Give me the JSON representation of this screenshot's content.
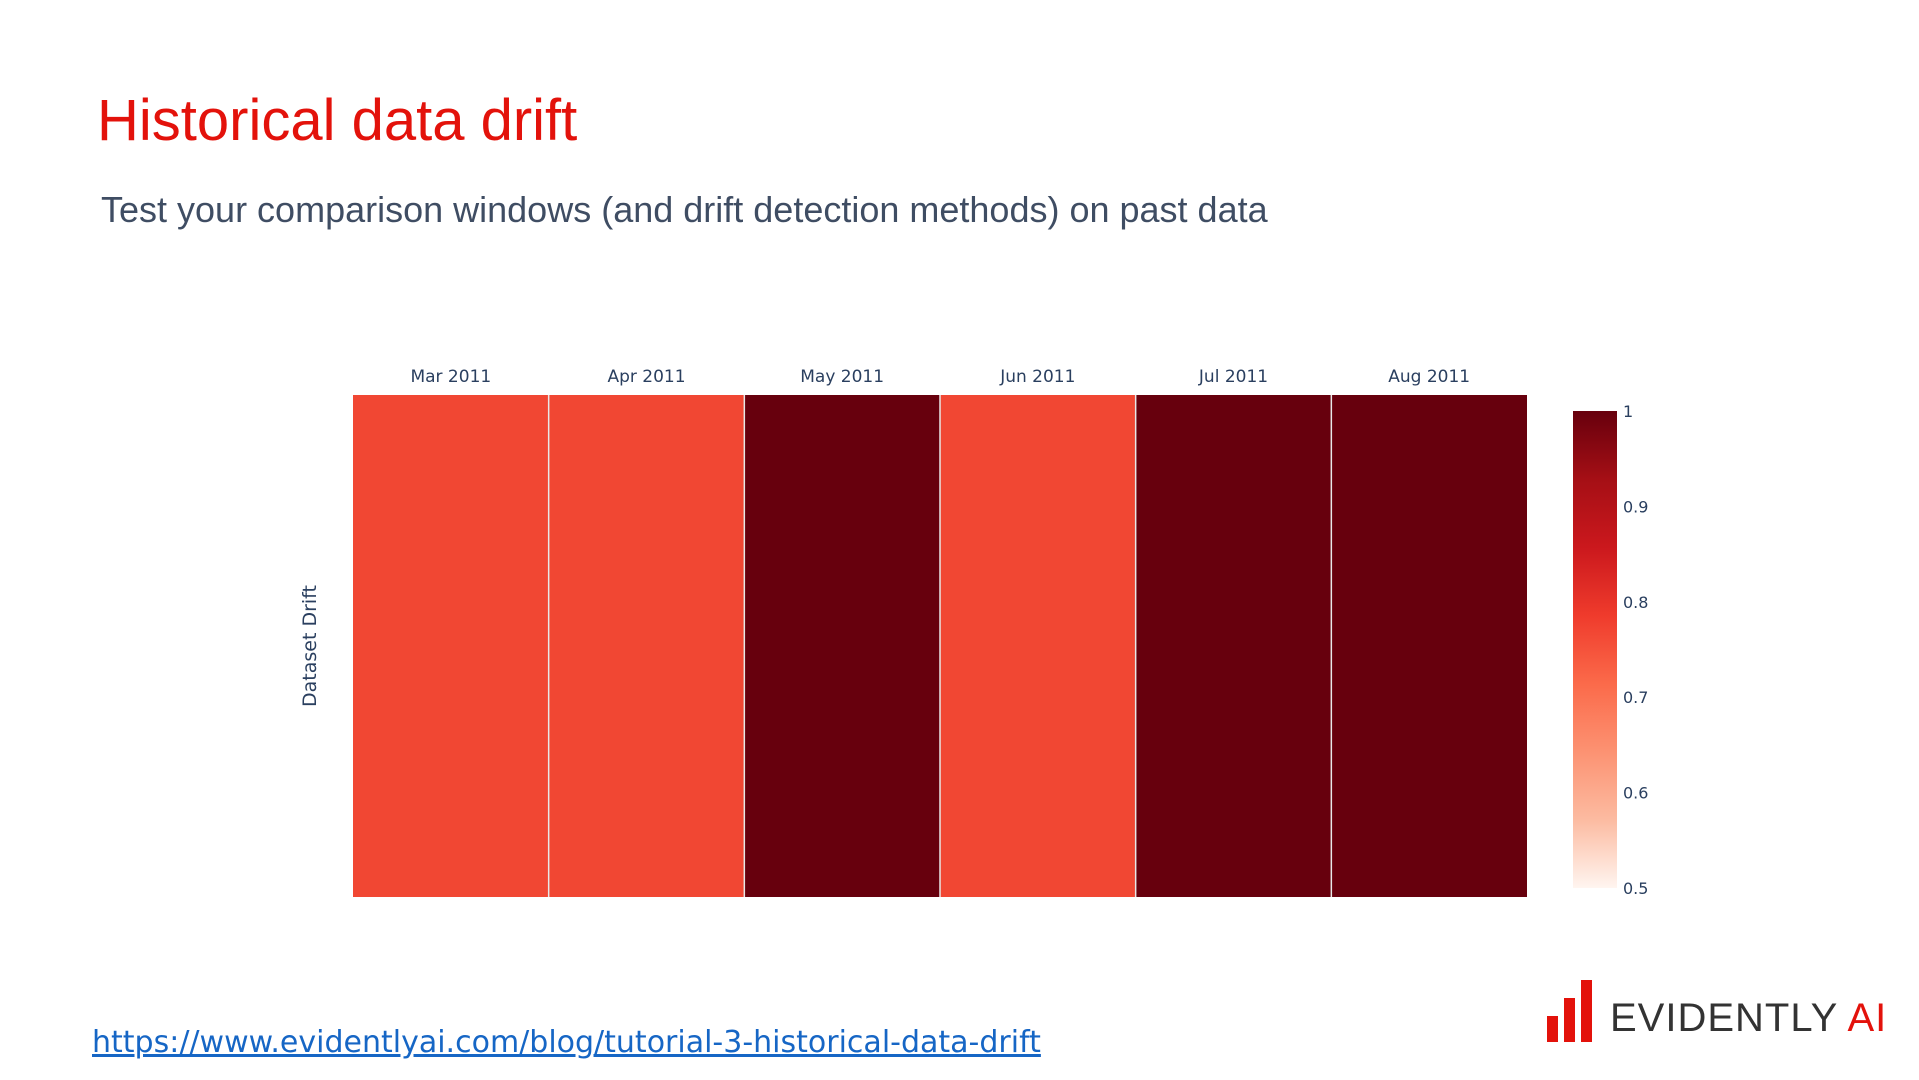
{
  "slide": {
    "title": "Historical data drift",
    "subtitle": "Test your comparison windows (and drift detection methods) on past data",
    "link_text": "https://www.evidentlyai.com/blog/tutorial-3-historical-data-drift",
    "logo": {
      "icon": "bar-chart-icon",
      "wordmark": "EVIDENTLY",
      "wordmark_accent": "AI",
      "color": "#e3120b"
    }
  },
  "chart_data": {
    "type": "heatmap",
    "x": [
      "Mar 2011",
      "Apr 2011",
      "May 2011",
      "Jun 2011",
      "Jul 2011",
      "Aug 2011"
    ],
    "y": [
      "Dataset Drift"
    ],
    "z": [
      [
        0.8,
        0.8,
        1,
        0.8,
        1,
        1
      ]
    ],
    "ylabel": "Dataset Drift",
    "xaxis_side": "top",
    "colorscale": "Reds",
    "colorscale_stops": [
      "#fff5f0",
      "#fcbba1",
      "#fc9272",
      "#fb6a4a",
      "#ef3b2c",
      "#cb181d",
      "#a50f15",
      "#67000d"
    ],
    "zmin": 0.5,
    "zmax": 1,
    "colorbar_ticks": [
      "0.5",
      "0.6",
      "0.7",
      "0.8",
      "0.9",
      "1"
    ],
    "cell_colors": [
      "#f14733",
      "#f14733",
      "#67000d",
      "#f14733",
      "#67000d",
      "#67000d"
    ],
    "cell_gap_color": "#e8e8e8",
    "tick_color": "#2a3f5f"
  }
}
